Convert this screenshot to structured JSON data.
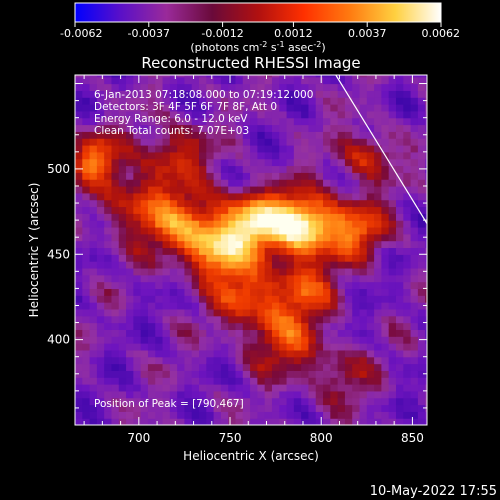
{
  "chart_data": {
    "type": "heatmap",
    "title": "Reconstructed RHESSI Image",
    "xlabel": "Heliocentric X (arcsec)",
    "ylabel": "Heliocentric Y (arcsec)",
    "xlim": [
      665,
      858
    ],
    "ylim": [
      350,
      555
    ],
    "xticks": [
      700,
      750,
      800,
      850
    ],
    "yticks": [
      400,
      450,
      500
    ],
    "colorbar": {
      "range": [
        -0.0062,
        0.0062
      ],
      "tick_values": [
        -0.0062,
        -0.0037,
        -0.0012,
        0.0012,
        0.0037,
        0.0062
      ],
      "tick_labels": [
        "-0.0062",
        "-0.0037",
        "-0.0012",
        "0.0012",
        "0.0037",
        "0.0062"
      ],
      "unit_label": "(photons cm",
      "unit_exp1": "-2",
      "unit_mid": " s",
      "unit_exp2": "-1",
      "unit_mid2": " asec",
      "unit_exp3": "-2",
      "unit_close": ")",
      "palette": [
        "#0000ff",
        "#5a10c8",
        "#9a2a9a",
        "#6a0a3a",
        "#b01010",
        "#ff3000",
        "#ff7a10",
        "#ffd040",
        "#ffffff"
      ]
    },
    "annotations": [
      "6-Jan-2013 07:18:08.000 to 07:19:12.000",
      "Detectors: 3F 4F 5F 6F 7F 8F, Att 0",
      "Energy Range: 6.0 - 12.0 keV",
      "Clean    Total counts: 7.07E+03"
    ],
    "peak_label": "Position of Peak = [790,467]",
    "peak": [
      790,
      467
    ],
    "limb_line": [
      [
        808,
        555
      ],
      [
        858,
        468
      ]
    ],
    "sources": [
      {
        "x": 790,
        "y": 467,
        "amp": 1.0,
        "s": 13
      },
      {
        "x": 762,
        "y": 470,
        "amp": 0.75,
        "s": 12
      },
      {
        "x": 745,
        "y": 452,
        "amp": 0.6,
        "s": 12
      },
      {
        "x": 728,
        "y": 465,
        "amp": 0.55,
        "s": 14
      },
      {
        "x": 700,
        "y": 480,
        "amp": 0.45,
        "s": 15
      },
      {
        "x": 676,
        "y": 507,
        "amp": 0.55,
        "s": 10
      },
      {
        "x": 760,
        "y": 425,
        "amp": 0.5,
        "s": 13
      },
      {
        "x": 790,
        "y": 430,
        "amp": 0.45,
        "s": 12
      },
      {
        "x": 780,
        "y": 400,
        "amp": 0.42,
        "s": 14
      },
      {
        "x": 820,
        "y": 465,
        "amp": 0.5,
        "s": 12
      },
      {
        "x": 720,
        "y": 510,
        "amp": 0.4,
        "s": 12
      },
      {
        "x": 825,
        "y": 508,
        "amp": 0.45,
        "s": 10
      },
      {
        "x": 810,
        "y": 380,
        "amp": 0.28,
        "s": 12
      }
    ],
    "grid": false
  },
  "footer": {
    "timestamp": "10-May-2022 17:55"
  }
}
